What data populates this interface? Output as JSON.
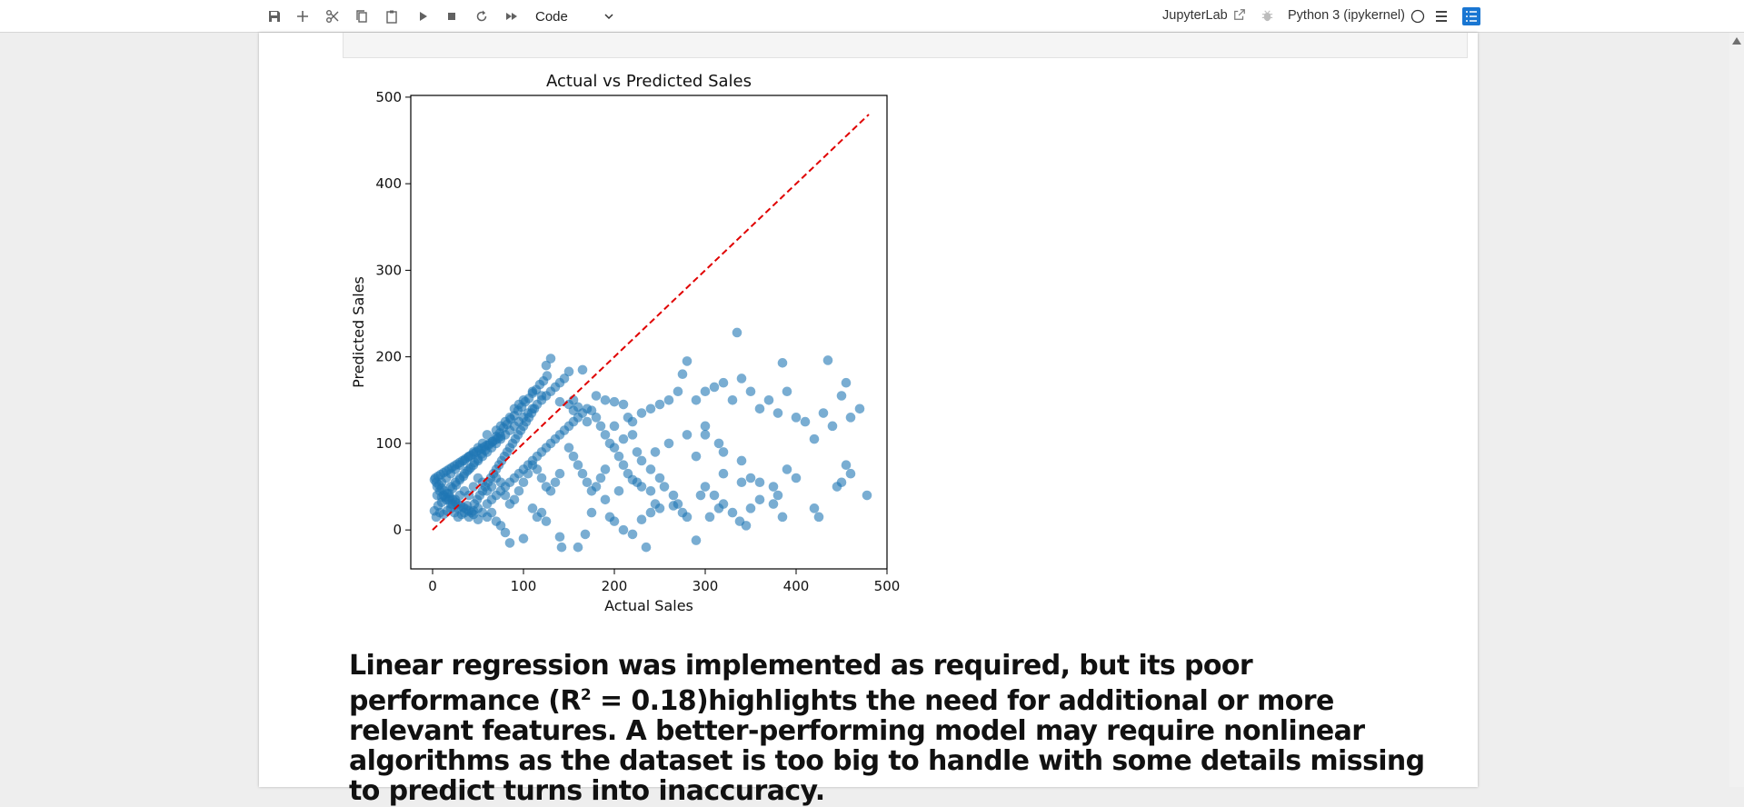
{
  "toolbar": {
    "icons": [
      "save-icon",
      "add-cell-icon",
      "cut-icon",
      "copy-icon",
      "paste-icon",
      "run-icon",
      "stop-icon",
      "restart-icon",
      "fast-forward-icon"
    ],
    "cell_type": "Code",
    "jupyterlab_link": "JupyterLab",
    "kernel_name": "Python 3 (ipykernel)",
    "kernel_status": "idle-circle",
    "accent_color": "#1976d2"
  },
  "chart_data": {
    "type": "scatter",
    "title": "Actual vs Predicted Sales",
    "xlabel": "Actual Sales",
    "ylabel": "Predicted Sales",
    "xlim": [
      -24,
      500
    ],
    "ylim": [
      -45,
      502
    ],
    "xticks": [
      0,
      100,
      200,
      300,
      400,
      500
    ],
    "yticks": [
      0,
      100,
      200,
      300,
      400,
      500
    ],
    "grid": false,
    "point_color": "#1f77b4",
    "point_alpha": 0.6,
    "reference_line": {
      "from": [
        0,
        0
      ],
      "to": [
        480,
        480
      ],
      "color": "#e00000",
      "style": "dashed"
    },
    "points": [
      [
        130,
        198
      ],
      [
        125,
        190
      ],
      [
        150,
        183
      ],
      [
        165,
        185
      ],
      [
        180,
        155
      ],
      [
        155,
        150
      ],
      [
        140,
        148
      ],
      [
        120,
        155
      ],
      [
        110,
        160
      ],
      [
        100,
        150
      ],
      [
        95,
        145
      ],
      [
        90,
        140
      ],
      [
        85,
        130
      ],
      [
        80,
        125
      ],
      [
        75,
        120
      ],
      [
        70,
        115
      ],
      [
        60,
        110
      ],
      [
        55,
        100
      ],
      [
        50,
        95
      ],
      [
        45,
        90
      ],
      [
        40,
        85
      ],
      [
        35,
        80
      ],
      [
        30,
        75
      ],
      [
        25,
        70
      ],
      [
        20,
        65
      ],
      [
        15,
        60
      ],
      [
        10,
        55
      ],
      [
        5,
        50
      ],
      [
        2,
        58
      ],
      [
        8,
        45
      ],
      [
        12,
        40
      ],
      [
        18,
        35
      ],
      [
        22,
        30
      ],
      [
        28,
        25
      ],
      [
        35,
        20
      ],
      [
        40,
        15
      ],
      [
        45,
        18
      ],
      [
        50,
        25
      ],
      [
        60,
        30
      ],
      [
        65,
        35
      ],
      [
        70,
        40
      ],
      [
        75,
        45
      ],
      [
        80,
        50
      ],
      [
        85,
        55
      ],
      [
        90,
        60
      ],
      [
        95,
        65
      ],
      [
        100,
        70
      ],
      [
        105,
        75
      ],
      [
        110,
        80
      ],
      [
        115,
        85
      ],
      [
        120,
        90
      ],
      [
        125,
        95
      ],
      [
        130,
        100
      ],
      [
        135,
        105
      ],
      [
        140,
        110
      ],
      [
        145,
        115
      ],
      [
        150,
        120
      ],
      [
        155,
        125
      ],
      [
        160,
        130
      ],
      [
        165,
        135
      ],
      [
        170,
        140
      ],
      [
        175,
        138
      ],
      [
        190,
        150
      ],
      [
        200,
        148
      ],
      [
        210,
        145
      ],
      [
        215,
        130
      ],
      [
        220,
        125
      ],
      [
        230,
        135
      ],
      [
        240,
        140
      ],
      [
        250,
        145
      ],
      [
        260,
        150
      ],
      [
        270,
        160
      ],
      [
        275,
        180
      ],
      [
        280,
        195
      ],
      [
        290,
        150
      ],
      [
        300,
        160
      ],
      [
        310,
        165
      ],
      [
        320,
        170
      ],
      [
        330,
        150
      ],
      [
        335,
        228
      ],
      [
        340,
        175
      ],
      [
        350,
        160
      ],
      [
        360,
        140
      ],
      [
        370,
        150
      ],
      [
        380,
        135
      ],
      [
        385,
        193
      ],
      [
        390,
        160
      ],
      [
        400,
        130
      ],
      [
        410,
        125
      ],
      [
        420,
        105
      ],
      [
        430,
        135
      ],
      [
        435,
        196
      ],
      [
        440,
        120
      ],
      [
        450,
        155
      ],
      [
        455,
        170
      ],
      [
        460,
        130
      ],
      [
        470,
        140
      ],
      [
        245,
        90
      ],
      [
        260,
        100
      ],
      [
        280,
        110
      ],
      [
        300,
        120
      ],
      [
        315,
        100
      ],
      [
        320,
        90
      ],
      [
        340,
        80
      ],
      [
        350,
        60
      ],
      [
        360,
        55
      ],
      [
        375,
        50
      ],
      [
        380,
        40
      ],
      [
        390,
        70
      ],
      [
        400,
        60
      ],
      [
        420,
        25
      ],
      [
        425,
        15
      ],
      [
        445,
        50
      ],
      [
        450,
        55
      ],
      [
        455,
        75
      ],
      [
        460,
        65
      ],
      [
        478,
        40
      ],
      [
        200,
        120
      ],
      [
        210,
        105
      ],
      [
        220,
        110
      ],
      [
        225,
        90
      ],
      [
        230,
        80
      ],
      [
        240,
        70
      ],
      [
        250,
        60
      ],
      [
        255,
        50
      ],
      [
        265,
        40
      ],
      [
        270,
        30
      ],
      [
        275,
        20
      ],
      [
        280,
        15
      ],
      [
        295,
        40
      ],
      [
        300,
        50
      ],
      [
        310,
        40
      ],
      [
        320,
        30
      ],
      [
        330,
        20
      ],
      [
        338,
        10
      ],
      [
        345,
        5
      ],
      [
        350,
        25
      ],
      [
        360,
        35
      ],
      [
        375,
        30
      ],
      [
        385,
        15
      ],
      [
        290,
        -12
      ],
      [
        305,
        15
      ],
      [
        315,
        25
      ],
      [
        195,
        15
      ],
      [
        200,
        10
      ],
      [
        210,
        0
      ],
      [
        220,
        -5
      ],
      [
        235,
        -20
      ],
      [
        230,
        12
      ],
      [
        240,
        20
      ],
      [
        245,
        30
      ],
      [
        240,
        45
      ],
      [
        225,
        55
      ],
      [
        205,
        45
      ],
      [
        190,
        35
      ],
      [
        175,
        20
      ],
      [
        168,
        -5
      ],
      [
        160,
        -20
      ],
      [
        142,
        -20
      ],
      [
        140,
        -8
      ],
      [
        125,
        10
      ],
      [
        120,
        20
      ],
      [
        115,
        15
      ],
      [
        110,
        25
      ],
      [
        100,
        -10
      ],
      [
        85,
        -15
      ],
      [
        80,
        -3
      ],
      [
        75,
        5
      ],
      [
        70,
        10
      ],
      [
        65,
        20
      ],
      [
        60,
        15
      ],
      [
        55,
        20
      ],
      [
        50,
        12
      ],
      [
        45,
        22
      ],
      [
        38,
        28
      ],
      [
        32,
        18
      ],
      [
        28,
        15
      ],
      [
        24,
        20
      ],
      [
        20,
        25
      ],
      [
        16,
        22
      ],
      [
        12,
        18
      ],
      [
        8,
        20
      ],
      [
        4,
        15
      ],
      [
        2,
        22
      ],
      [
        6,
        28
      ],
      [
        10,
        32
      ],
      [
        14,
        38
      ],
      [
        18,
        42
      ],
      [
        22,
        48
      ],
      [
        26,
        52
      ],
      [
        30,
        58
      ],
      [
        34,
        62
      ],
      [
        38,
        68
      ],
      [
        42,
        72
      ],
      [
        46,
        78
      ],
      [
        50,
        82
      ],
      [
        54,
        88
      ],
      [
        58,
        92
      ],
      [
        62,
        98
      ],
      [
        66,
        102
      ],
      [
        70,
        108
      ],
      [
        74,
        112
      ],
      [
        78,
        118
      ],
      [
        82,
        122
      ],
      [
        86,
        128
      ],
      [
        90,
        132
      ],
      [
        94,
        138
      ],
      [
        98,
        142
      ],
      [
        102,
        148
      ],
      [
        106,
        152
      ],
      [
        110,
        158
      ],
      [
        114,
        162
      ],
      [
        118,
        168
      ],
      [
        122,
        172
      ],
      [
        126,
        178
      ],
      [
        3,
        60
      ],
      [
        6,
        62
      ],
      [
        9,
        64
      ],
      [
        12,
        66
      ],
      [
        15,
        68
      ],
      [
        18,
        70
      ],
      [
        21,
        72
      ],
      [
        24,
        74
      ],
      [
        27,
        76
      ],
      [
        30,
        78
      ],
      [
        33,
        80
      ],
      [
        36,
        82
      ],
      [
        39,
        84
      ],
      [
        42,
        86
      ],
      [
        45,
        88
      ],
      [
        48,
        90
      ],
      [
        51,
        92
      ],
      [
        54,
        94
      ],
      [
        57,
        96
      ],
      [
        60,
        98
      ],
      [
        63,
        100
      ],
      [
        66,
        102
      ],
      [
        69,
        104
      ],
      [
        72,
        106
      ],
      [
        75,
        108
      ],
      [
        4,
        55
      ],
      [
        7,
        52
      ],
      [
        10,
        48
      ],
      [
        13,
        45
      ],
      [
        16,
        42
      ],
      [
        19,
        38
      ],
      [
        22,
        35
      ],
      [
        25,
        32
      ],
      [
        28,
        30
      ],
      [
        31,
        28
      ],
      [
        34,
        26
      ],
      [
        37,
        24
      ],
      [
        40,
        22
      ],
      [
        43,
        20
      ],
      [
        46,
        30
      ],
      [
        49,
        35
      ],
      [
        52,
        40
      ],
      [
        55,
        45
      ],
      [
        58,
        50
      ],
      [
        61,
        55
      ],
      [
        64,
        60
      ],
      [
        67,
        65
      ],
      [
        70,
        70
      ],
      [
        73,
        75
      ],
      [
        76,
        80
      ],
      [
        79,
        85
      ],
      [
        82,
        90
      ],
      [
        85,
        95
      ],
      [
        88,
        100
      ],
      [
        91,
        105
      ],
      [
        94,
        110
      ],
      [
        97,
        115
      ],
      [
        100,
        120
      ],
      [
        103,
        125
      ],
      [
        106,
        130
      ],
      [
        109,
        135
      ],
      [
        112,
        140
      ],
      [
        20,
        50
      ],
      [
        25,
        55
      ],
      [
        30,
        60
      ],
      [
        35,
        65
      ],
      [
        40,
        70
      ],
      [
        45,
        75
      ],
      [
        50,
        80
      ],
      [
        55,
        85
      ],
      [
        60,
        90
      ],
      [
        65,
        95
      ],
      [
        70,
        100
      ],
      [
        75,
        105
      ],
      [
        80,
        110
      ],
      [
        85,
        115
      ],
      [
        90,
        120
      ],
      [
        95,
        125
      ],
      [
        100,
        130
      ],
      [
        105,
        135
      ],
      [
        110,
        140
      ],
      [
        115,
        145
      ],
      [
        120,
        150
      ],
      [
        125,
        155
      ],
      [
        130,
        160
      ],
      [
        135,
        165
      ],
      [
        140,
        170
      ],
      [
        145,
        175
      ],
      [
        150,
        145
      ],
      [
        155,
        138
      ],
      [
        160,
        142
      ],
      [
        170,
        125
      ],
      [
        180,
        130
      ],
      [
        185,
        120
      ],
      [
        190,
        110
      ],
      [
        195,
        100
      ],
      [
        200,
        95
      ],
      [
        205,
        85
      ],
      [
        210,
        75
      ],
      [
        215,
        65
      ],
      [
        220,
        58
      ],
      [
        230,
        50
      ],
      [
        150,
        95
      ],
      [
        155,
        85
      ],
      [
        160,
        75
      ],
      [
        165,
        65
      ],
      [
        170,
        55
      ],
      [
        175,
        45
      ],
      [
        180,
        50
      ],
      [
        185,
        60
      ],
      [
        190,
        70
      ],
      [
        140,
        65
      ],
      [
        135,
        55
      ],
      [
        130,
        45
      ],
      [
        125,
        50
      ],
      [
        120,
        60
      ],
      [
        115,
        70
      ],
      [
        110,
        75
      ],
      [
        105,
        65
      ],
      [
        100,
        55
      ],
      [
        95,
        45
      ],
      [
        90,
        35
      ],
      [
        85,
        30
      ],
      [
        80,
        40
      ],
      [
        75,
        55
      ],
      [
        70,
        60
      ],
      [
        65,
        50
      ],
      [
        60,
        45
      ],
      [
        55,
        55
      ],
      [
        50,
        60
      ],
      [
        45,
        50
      ],
      [
        40,
        40
      ],
      [
        35,
        45
      ],
      [
        30,
        40
      ],
      [
        25,
        35
      ],
      [
        20,
        30
      ],
      [
        15,
        35
      ],
      [
        10,
        38
      ],
      [
        5,
        40
      ],
      [
        250,
        25
      ],
      [
        265,
        28
      ],
      [
        290,
        85
      ],
      [
        300,
        110
      ],
      [
        320,
        65
      ],
      [
        340,
        55
      ]
    ]
  },
  "markdown": {
    "text_before_sup": "Linear regression was implemented as required, but its poor performance (R",
    "superscript": "2",
    "text_after_sup": " = 0.18)highlights the need for additional or more relevant features. A better-performing model may require nonlinear algorithms as the dataset is too big to handle with some details missing to predict turns into inaccuracy."
  }
}
